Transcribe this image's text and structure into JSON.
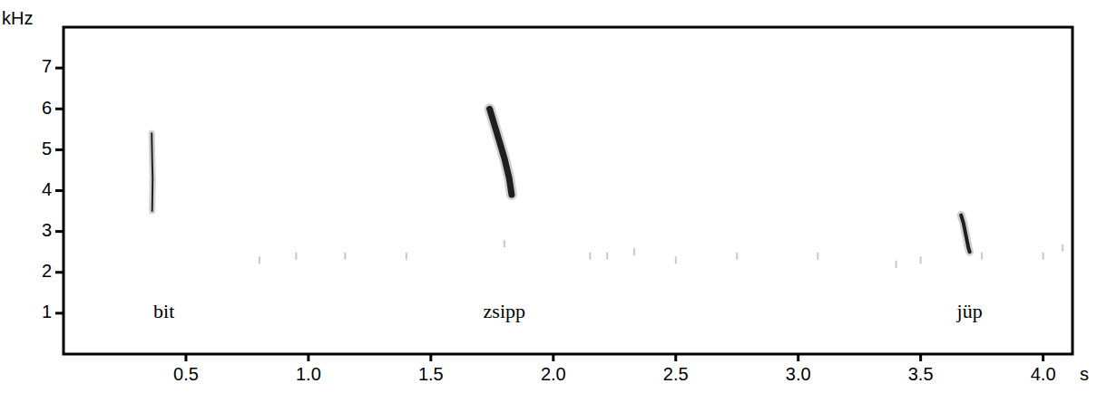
{
  "chart_data": {
    "type": "spectrogram",
    "x_label": "s",
    "y_label": "kHz",
    "xlim": [
      0,
      4.12
    ],
    "ylim": [
      0,
      8
    ],
    "xticks": [
      0.5,
      {
        "value": 1.0,
        "label": "1.0"
      },
      1.5,
      {
        "value": 2.0,
        "label": "2.0"
      },
      2.5,
      {
        "value": 3.0,
        "label": "3.0"
      },
      3.5,
      {
        "value": 4.0,
        "label": "4.0"
      }
    ],
    "yticks": [
      1,
      2,
      3,
      4,
      5,
      6,
      7
    ],
    "color": "#000000",
    "series": [
      {
        "name": "bit",
        "x": [
          0.36,
          0.362,
          0.364,
          0.363,
          0.362
        ],
        "values": [
          5.4,
          4.8,
          4.3,
          3.9,
          3.5
        ]
      },
      {
        "name": "zsipp",
        "x": [
          1.74,
          1.76,
          1.78,
          1.8,
          1.82,
          1.83
        ],
        "values": [
          6.0,
          5.6,
          5.2,
          4.8,
          4.3,
          3.9
        ]
      },
      {
        "name": "jüp",
        "x": [
          3.665,
          3.675,
          3.685,
          3.695,
          3.7
        ],
        "values": [
          3.4,
          3.2,
          2.9,
          2.6,
          2.5
        ]
      }
    ],
    "annotations": [
      {
        "text": "bit",
        "x": 0.41,
        "y": 1.0
      },
      {
        "text": "zsipp",
        "x": 1.8,
        "y": 1.0
      },
      {
        "text": "jüp",
        "x": 3.7,
        "y": 1.0
      }
    ],
    "noise": {
      "x": [
        0.8,
        0.95,
        1.15,
        1.4,
        1.8,
        2.15,
        2.22,
        2.33,
        2.5,
        2.75,
        3.08,
        3.4,
        3.5,
        3.75,
        4.0,
        4.08
      ],
      "values": [
        2.3,
        2.4,
        2.4,
        2.4,
        2.7,
        2.4,
        2.4,
        2.5,
        2.3,
        2.4,
        2.4,
        2.2,
        2.3,
        2.4,
        2.4,
        2.6
      ]
    }
  }
}
